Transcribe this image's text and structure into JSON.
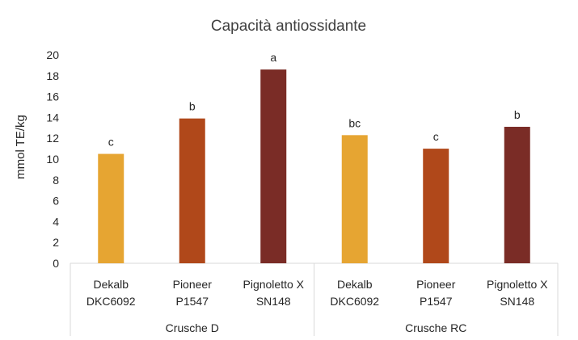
{
  "chart_data": {
    "type": "bar",
    "title": "Capacità antiossidante",
    "ylabel": "mmol TE/kg",
    "xlabel": "",
    "ylim": [
      0,
      20
    ],
    "yticks": [
      0,
      2,
      4,
      6,
      8,
      10,
      12,
      14,
      16,
      18,
      20
    ],
    "groups": [
      {
        "name": "Crusche D",
        "bars": [
          {
            "line1": "Dekalb",
            "line2": "DKC6092",
            "value": 10.5,
            "label": "c",
            "color": "#E6A532"
          },
          {
            "line1": "Pioneer",
            "line2": "P1547",
            "value": 13.9,
            "label": "b",
            "color": "#B0481A"
          },
          {
            "line1": "Pignoletto X",
            "line2": "SN148",
            "value": 18.6,
            "label": "a",
            "color": "#7A2C26"
          }
        ]
      },
      {
        "name": "Crusche RC",
        "bars": [
          {
            "line1": "Dekalb",
            "line2": "DKC6092",
            "value": 12.3,
            "label": "bc",
            "color": "#E6A532"
          },
          {
            "line1": "Pioneer",
            "line2": "P1547",
            "value": 11.0,
            "label": "c",
            "color": "#B0481A"
          },
          {
            "line1": "Pignoletto X",
            "line2": "SN148",
            "value": 13.1,
            "label": "b",
            "color": "#7A2C26"
          }
        ]
      }
    ]
  }
}
